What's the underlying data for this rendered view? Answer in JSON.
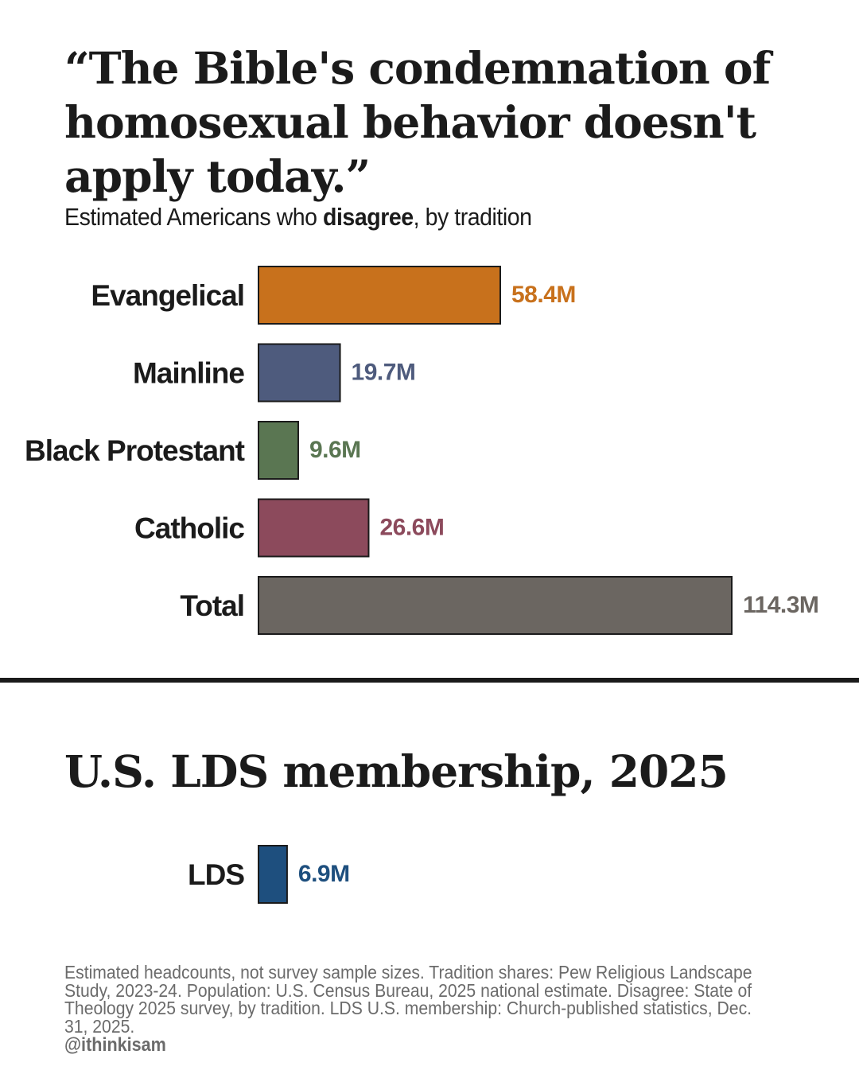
{
  "header": {
    "title": "“The Bible's condemnation of homosexual behavior doesn't apply today.”",
    "subtitle_pre": "Estimated Americans who ",
    "subtitle_bold": "disagree",
    "subtitle_post": ", by tradition"
  },
  "chart_data": [
    {
      "type": "bar",
      "orientation": "horizontal",
      "categories": [
        "Evangelical",
        "Mainline",
        "Black Protestant",
        "Catholic",
        "Total"
      ],
      "values": [
        58.4,
        19.7,
        9.6,
        26.6,
        114.3
      ],
      "value_labels": [
        "58.4M",
        "19.7M",
        "9.6M",
        "26.6M",
        "114.3M"
      ],
      "unit": "millions",
      "colors": [
        "#c8711c",
        "#4e5b7d",
        "#5a7652",
        "#8c4a5c",
        "#6b6661"
      ],
      "xlim": [
        0,
        114.3
      ],
      "grid": false
    },
    {
      "type": "bar",
      "orientation": "horizontal",
      "title": "U.S. LDS membership, 2025",
      "categories": [
        "LDS"
      ],
      "values": [
        6.9
      ],
      "value_labels": [
        "6.9M"
      ],
      "unit": "millions",
      "colors": [
        "#1e4f7e"
      ],
      "xlim": [
        0,
        114.3
      ],
      "grid": false
    }
  ],
  "footer": {
    "note": "Estimated headcounts, not survey sample sizes. Tradition shares: Pew Religious Landscape Study, 2023-24. Population: U.S. Census Bureau, 2025 national estimate. Disagree: State of Theology 2025 survey, by tradition. LDS U.S. membership: Church-published statistics, Dec. 31, 2025.",
    "handle": "@ithinkisam"
  }
}
